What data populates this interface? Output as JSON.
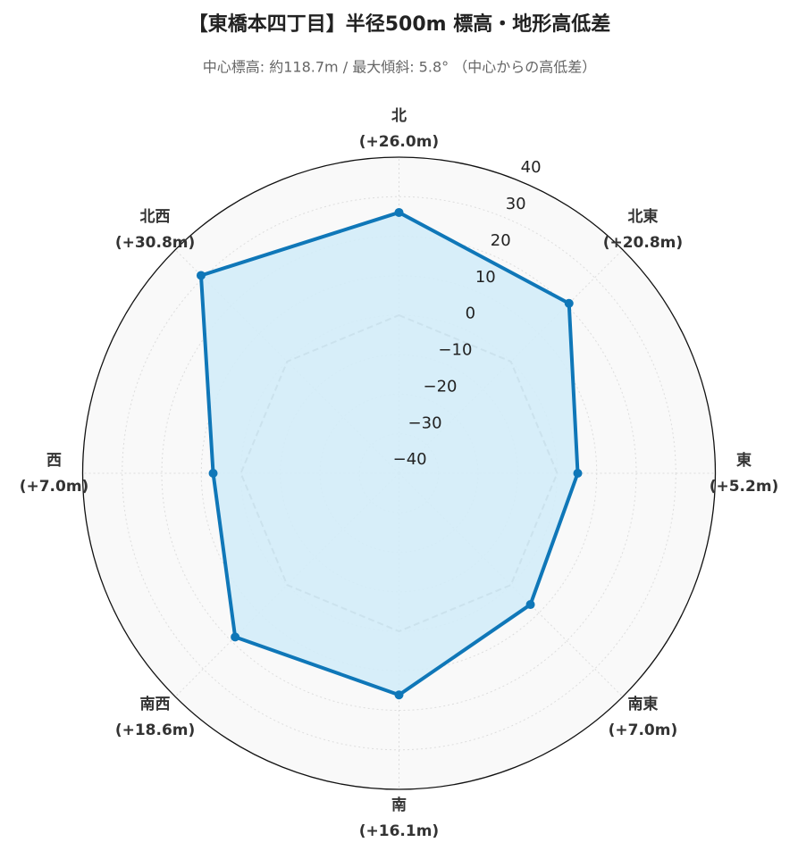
{
  "chart_data": {
    "type": "radar",
    "title": "【東橋本四丁目】半径500m 標高・地形高低差",
    "subtitle": "中心標高: 約118.7m / 最大傾斜: 5.8° （中心からの高低差）",
    "categories": [
      "北",
      "北東",
      "東",
      "南東",
      "南",
      "南西",
      "西",
      "北西"
    ],
    "series": [
      {
        "color": "#0f77b8",
        "fill": "#d3ecf8",
        "values": [
          26.0,
          20.8,
          5.2,
          7.0,
          16.1,
          18.6,
          7.0,
          30.8
        ],
        "value_labels": [
          "(+26.0m)",
          "(+20.8m)",
          "(+5.2m)",
          "(+7.0m)",
          "(+16.1m)",
          "(+18.6m)",
          "(+7.0m)",
          "(+30.8m)"
        ]
      }
    ],
    "reference_line": {
      "value": 0,
      "color": "#888888"
    },
    "ylim": [
      -40,
      40
    ],
    "yticks": [
      {
        "value": -40,
        "label": "−40"
      },
      {
        "value": -30,
        "label": "−30"
      },
      {
        "value": -20,
        "label": "−20"
      },
      {
        "value": -10,
        "label": "−10"
      },
      0,
      10,
      20,
      30,
      40
    ],
    "grid": true
  }
}
